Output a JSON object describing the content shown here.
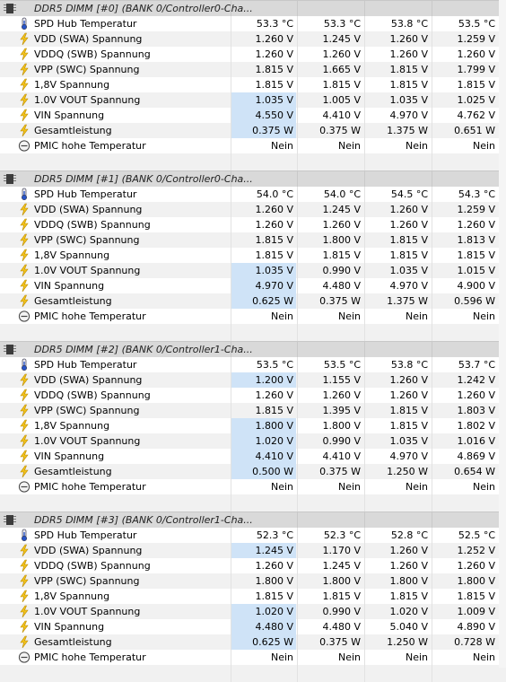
{
  "groups": [
    {
      "title": "DDR5 DIMM [#0] (BANK 0/Controller0-Cha...",
      "rows": [
        {
          "label": "SPD Hub Temperatur",
          "icon": "thermometer",
          "values": [
            "53.3 °C",
            "53.3 °C",
            "53.8 °C",
            "53.5 °C"
          ],
          "hl": false
        },
        {
          "label": "VDD (SWA) Spannung",
          "icon": "lightning",
          "values": [
            "1.260 V",
            "1.245 V",
            "1.260 V",
            "1.259 V"
          ],
          "hl": false
        },
        {
          "label": "VDDQ (SWB) Spannung",
          "icon": "lightning",
          "values": [
            "1.260 V",
            "1.260 V",
            "1.260 V",
            "1.260 V"
          ],
          "hl": false
        },
        {
          "label": "VPP (SWC) Spannung",
          "icon": "lightning",
          "values": [
            "1.815 V",
            "1.665 V",
            "1.815 V",
            "1.799 V"
          ],
          "hl": false
        },
        {
          "label": "1,8V Spannung",
          "icon": "lightning",
          "values": [
            "1.815 V",
            "1.815 V",
            "1.815 V",
            "1.815 V"
          ],
          "hl": false
        },
        {
          "label": "1.0V VOUT Spannung",
          "icon": "lightning",
          "values": [
            "1.035 V",
            "1.005 V",
            "1.035 V",
            "1.025 V"
          ],
          "hl": true
        },
        {
          "label": "VIN Spannung",
          "icon": "lightning",
          "values": [
            "4.550 V",
            "4.410 V",
            "4.970 V",
            "4.762 V"
          ],
          "hl": true
        },
        {
          "label": "Gesamtleistung",
          "icon": "lightning",
          "values": [
            "0.375 W",
            "0.375 W",
            "1.375 W",
            "0.651 W"
          ],
          "hl": true
        },
        {
          "label": "PMIC hohe Temperatur",
          "icon": "clock",
          "values": [
            "Nein",
            "Nein",
            "Nein",
            "Nein"
          ],
          "hl": false
        }
      ]
    },
    {
      "title": "DDR5 DIMM [#1] (BANK 0/Controller0-Cha...",
      "rows": [
        {
          "label": "SPD Hub Temperatur",
          "icon": "thermometer",
          "values": [
            "54.0 °C",
            "54.0 °C",
            "54.5 °C",
            "54.3 °C"
          ],
          "hl": false
        },
        {
          "label": "VDD (SWA) Spannung",
          "icon": "lightning",
          "values": [
            "1.260 V",
            "1.245 V",
            "1.260 V",
            "1.259 V"
          ],
          "hl": false
        },
        {
          "label": "VDDQ (SWB) Spannung",
          "icon": "lightning",
          "values": [
            "1.260 V",
            "1.260 V",
            "1.260 V",
            "1.260 V"
          ],
          "hl": false
        },
        {
          "label": "VPP (SWC) Spannung",
          "icon": "lightning",
          "values": [
            "1.815 V",
            "1.800 V",
            "1.815 V",
            "1.813 V"
          ],
          "hl": false
        },
        {
          "label": "1,8V Spannung",
          "icon": "lightning",
          "values": [
            "1.815 V",
            "1.815 V",
            "1.815 V",
            "1.815 V"
          ],
          "hl": false
        },
        {
          "label": "1.0V VOUT Spannung",
          "icon": "lightning",
          "values": [
            "1.035 V",
            "0.990 V",
            "1.035 V",
            "1.015 V"
          ],
          "hl": true
        },
        {
          "label": "VIN Spannung",
          "icon": "lightning",
          "values": [
            "4.970 V",
            "4.480 V",
            "4.970 V",
            "4.900 V"
          ],
          "hl": true
        },
        {
          "label": "Gesamtleistung",
          "icon": "lightning",
          "values": [
            "0.625 W",
            "0.375 W",
            "1.375 W",
            "0.596 W"
          ],
          "hl": true
        },
        {
          "label": "PMIC hohe Temperatur",
          "icon": "clock",
          "values": [
            "Nein",
            "Nein",
            "Nein",
            "Nein"
          ],
          "hl": false
        }
      ]
    },
    {
      "title": "DDR5 DIMM [#2] (BANK 0/Controller1-Cha...",
      "rows": [
        {
          "label": "SPD Hub Temperatur",
          "icon": "thermometer",
          "values": [
            "53.5 °C",
            "53.5 °C",
            "53.8 °C",
            "53.7 °C"
          ],
          "hl": false
        },
        {
          "label": "VDD (SWA) Spannung",
          "icon": "lightning",
          "values": [
            "1.200 V",
            "1.155 V",
            "1.260 V",
            "1.242 V"
          ],
          "hl": true
        },
        {
          "label": "VDDQ (SWB) Spannung",
          "icon": "lightning",
          "values": [
            "1.260 V",
            "1.260 V",
            "1.260 V",
            "1.260 V"
          ],
          "hl": false
        },
        {
          "label": "VPP (SWC) Spannung",
          "icon": "lightning",
          "values": [
            "1.815 V",
            "1.395 V",
            "1.815 V",
            "1.803 V"
          ],
          "hl": false
        },
        {
          "label": "1,8V Spannung",
          "icon": "lightning",
          "values": [
            "1.800 V",
            "1.800 V",
            "1.815 V",
            "1.802 V"
          ],
          "hl": true
        },
        {
          "label": "1.0V VOUT Spannung",
          "icon": "lightning",
          "values": [
            "1.020 V",
            "0.990 V",
            "1.035 V",
            "1.016 V"
          ],
          "hl": true
        },
        {
          "label": "VIN Spannung",
          "icon": "lightning",
          "values": [
            "4.410 V",
            "4.410 V",
            "4.970 V",
            "4.869 V"
          ],
          "hl": true
        },
        {
          "label": "Gesamtleistung",
          "icon": "lightning",
          "values": [
            "0.500 W",
            "0.375 W",
            "1.250 W",
            "0.654 W"
          ],
          "hl": true
        },
        {
          "label": "PMIC hohe Temperatur",
          "icon": "clock",
          "values": [
            "Nein",
            "Nein",
            "Nein",
            "Nein"
          ],
          "hl": false
        }
      ]
    },
    {
      "title": "DDR5 DIMM [#3] (BANK 0/Controller1-Cha...",
      "rows": [
        {
          "label": "SPD Hub Temperatur",
          "icon": "thermometer",
          "values": [
            "52.3 °C",
            "52.3 °C",
            "52.8 °C",
            "52.5 °C"
          ],
          "hl": false
        },
        {
          "label": "VDD (SWA) Spannung",
          "icon": "lightning",
          "values": [
            "1.245 V",
            "1.170 V",
            "1.260 V",
            "1.252 V"
          ],
          "hl": true
        },
        {
          "label": "VDDQ (SWB) Spannung",
          "icon": "lightning",
          "values": [
            "1.260 V",
            "1.245 V",
            "1.260 V",
            "1.260 V"
          ],
          "hl": false
        },
        {
          "label": "VPP (SWC) Spannung",
          "icon": "lightning",
          "values": [
            "1.800 V",
            "1.800 V",
            "1.800 V",
            "1.800 V"
          ],
          "hl": false
        },
        {
          "label": "1,8V Spannung",
          "icon": "lightning",
          "values": [
            "1.815 V",
            "1.815 V",
            "1.815 V",
            "1.815 V"
          ],
          "hl": false
        },
        {
          "label": "1.0V VOUT Spannung",
          "icon": "lightning",
          "values": [
            "1.020 V",
            "0.990 V",
            "1.020 V",
            "1.009 V"
          ],
          "hl": true
        },
        {
          "label": "VIN Spannung",
          "icon": "lightning",
          "values": [
            "4.480 V",
            "4.480 V",
            "5.040 V",
            "4.890 V"
          ],
          "hl": true
        },
        {
          "label": "Gesamtleistung",
          "icon": "lightning",
          "values": [
            "0.625 W",
            "0.375 W",
            "1.250 W",
            "0.728 W"
          ],
          "hl": true
        },
        {
          "label": "PMIC hohe Temperatur",
          "icon": "clock",
          "values": [
            "Nein",
            "Nein",
            "Nein",
            "Nein"
          ],
          "hl": false
        }
      ]
    }
  ],
  "colors": {
    "highlight": "#cfe3f7",
    "header_bg": "#d9d9d9",
    "alt_row": "#f1f1f1"
  }
}
